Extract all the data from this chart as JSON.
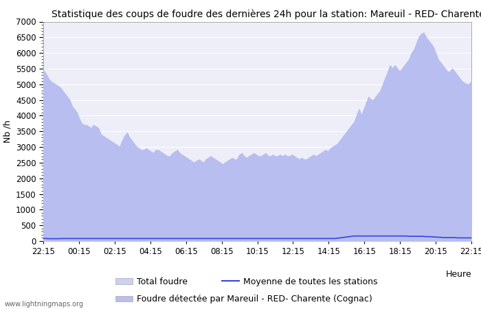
{
  "title": "Statistique des coups de foudre des dernières 24h pour la station: Mareuil - RED- Charente (Cognac)",
  "xlabel": "Heure",
  "ylabel": "Nb /h",
  "watermark": "www.lightningmaps.org",
  "ylim": [
    0,
    7000
  ],
  "yticks": [
    0,
    500,
    1000,
    1500,
    2000,
    2500,
    3000,
    3500,
    4000,
    4500,
    5000,
    5500,
    6000,
    6500,
    7000
  ],
  "xtick_labels": [
    "22:15",
    "00:15",
    "02:15",
    "04:15",
    "06:15",
    "08:15",
    "10:15",
    "12:15",
    "14:15",
    "16:15",
    "18:15",
    "20:15",
    "22:15"
  ],
  "legend_entries": [
    "Total foudre",
    "Moyenne de toutes les stations",
    "Foudre étectée par Mareuil - RED- Charente (Cognac)"
  ],
  "fill_color_total": "#cdd0f0",
  "fill_color_station": "#b8bef0",
  "line_color_mean": "#3344dd",
  "background_color": "#ffffff",
  "plot_bg_color": "#eeeef8",
  "grid_color": "#ffffff",
  "title_fontsize": 10,
  "axis_fontsize": 9,
  "tick_fontsize": 8.5,
  "total_foudre": [
    5450,
    5350,
    5200,
    5100,
    5050,
    5000,
    4950,
    4900,
    4800,
    4700,
    4600,
    4500,
    4300,
    4200,
    4100,
    3900,
    3750,
    3700,
    3700,
    3650,
    3600,
    3700,
    3650,
    3600,
    3400,
    3350,
    3300,
    3250,
    3200,
    3150,
    3100,
    3050,
    3000,
    3200,
    3350,
    3450,
    3300,
    3200,
    3100,
    3000,
    2950,
    2900,
    2900,
    2950,
    2900,
    2850,
    2800,
    2900,
    2900,
    2850,
    2800,
    2750,
    2700,
    2700,
    2800,
    2850,
    2900,
    2800,
    2750,
    2700,
    2650,
    2600,
    2550,
    2500,
    2550,
    2600,
    2550,
    2500,
    2600,
    2650,
    2700,
    2650,
    2600,
    2550,
    2500,
    2450,
    2500,
    2550,
    2600,
    2650,
    2600,
    2600,
    2750,
    2800,
    2700,
    2650,
    2700,
    2750,
    2800,
    2750,
    2700,
    2700,
    2750,
    2800,
    2700,
    2700,
    2750,
    2700,
    2700,
    2750,
    2700,
    2750,
    2700,
    2700,
    2750,
    2700,
    2650,
    2600,
    2650,
    2600,
    2600,
    2650,
    2700,
    2750,
    2700,
    2750,
    2800,
    2850,
    2900,
    2850,
    2950,
    3000,
    3050,
    3100,
    3200,
    3300,
    3400,
    3500,
    3600,
    3700,
    3800,
    4000,
    4200,
    4000,
    4200,
    4400,
    4600,
    4500,
    4500,
    4600,
    4700,
    4800,
    5000,
    5200,
    5400,
    5600,
    5500,
    5600,
    5500,
    5400,
    5500,
    5600,
    5700,
    5800,
    6000,
    6100,
    6300,
    6500,
    6600,
    6650,
    6500,
    6400,
    6300,
    6200,
    6000,
    5800,
    5700,
    5600,
    5500,
    5400,
    5400,
    5500,
    5400,
    5300,
    5200,
    5100,
    5050,
    5000,
    5000,
    5100
  ],
  "station_foudre": [
    5450,
    5350,
    5200,
    5100,
    5050,
    5000,
    4950,
    4900,
    4800,
    4700,
    4600,
    4500,
    4300,
    4200,
    4100,
    3900,
    3750,
    3700,
    3700,
    3650,
    3600,
    3700,
    3650,
    3600,
    3400,
    3350,
    3300,
    3250,
    3200,
    3150,
    3100,
    3050,
    3000,
    3200,
    3350,
    3450,
    3300,
    3200,
    3100,
    3000,
    2950,
    2900,
    2900,
    2950,
    2900,
    2850,
    2800,
    2900,
    2900,
    2850,
    2800,
    2750,
    2700,
    2700,
    2800,
    2850,
    2900,
    2800,
    2750,
    2700,
    2650,
    2600,
    2550,
    2500,
    2550,
    2600,
    2550,
    2500,
    2600,
    2650,
    2700,
    2650,
    2600,
    2550,
    2500,
    2450,
    2500,
    2550,
    2600,
    2650,
    2600,
    2600,
    2750,
    2800,
    2700,
    2650,
    2700,
    2750,
    2800,
    2750,
    2700,
    2700,
    2750,
    2800,
    2700,
    2700,
    2750,
    2700,
    2700,
    2750,
    2700,
    2750,
    2700,
    2700,
    2750,
    2700,
    2650,
    2600,
    2650,
    2600,
    2600,
    2650,
    2700,
    2750,
    2700,
    2750,
    2800,
    2850,
    2900,
    2850,
    2950,
    3000,
    3050,
    3100,
    3200,
    3300,
    3400,
    3500,
    3600,
    3700,
    3800,
    4000,
    4200,
    4000,
    4200,
    4400,
    4600,
    4500,
    4500,
    4600,
    4700,
    4800,
    5000,
    5200,
    5400,
    5600,
    5500,
    5600,
    5500,
    5400,
    5500,
    5600,
    5700,
    5800,
    6000,
    6100,
    6300,
    6500,
    6600,
    6650,
    6500,
    6400,
    6300,
    6200,
    6000,
    5800,
    5700,
    5600,
    5500,
    5400,
    5400,
    5500,
    5400,
    5300,
    5200,
    5100,
    5050,
    5000,
    5000,
    5100
  ],
  "mean_line": [
    80,
    80,
    75,
    75,
    75,
    75,
    75,
    75,
    80,
    80,
    80,
    80,
    80,
    80,
    80,
    80,
    80,
    80,
    80,
    80,
    80,
    80,
    80,
    80,
    80,
    80,
    80,
    80,
    80,
    80,
    80,
    80,
    80,
    80,
    80,
    80,
    80,
    80,
    80,
    80,
    80,
    80,
    80,
    80,
    80,
    80,
    80,
    80,
    80,
    80,
    80,
    80,
    80,
    80,
    80,
    80,
    80,
    80,
    80,
    80,
    80,
    80,
    80,
    80,
    80,
    80,
    80,
    80,
    80,
    80,
    80,
    80,
    80,
    80,
    80,
    80,
    80,
    80,
    80,
    80,
    80,
    80,
    80,
    80,
    80,
    80,
    80,
    80,
    80,
    80,
    80,
    80,
    80,
    80,
    80,
    80,
    80,
    80,
    80,
    80,
    80,
    80,
    80,
    80,
    80,
    80,
    80,
    80,
    80,
    80,
    80,
    80,
    80,
    80,
    80,
    80,
    80,
    80,
    80,
    80,
    80,
    80,
    80,
    90,
    100,
    110,
    120,
    130,
    140,
    150,
    160,
    160,
    160,
    160,
    160,
    160,
    160,
    160,
    160,
    160,
    160,
    160,
    160,
    160,
    160,
    160,
    160,
    160,
    160,
    160,
    160,
    160,
    160,
    150,
    150,
    150,
    150,
    150,
    150,
    150,
    140,
    140,
    140,
    130,
    130,
    120,
    120,
    110,
    110,
    110,
    110,
    110,
    110,
    100,
    100,
    100,
    100,
    100,
    100,
    100
  ]
}
